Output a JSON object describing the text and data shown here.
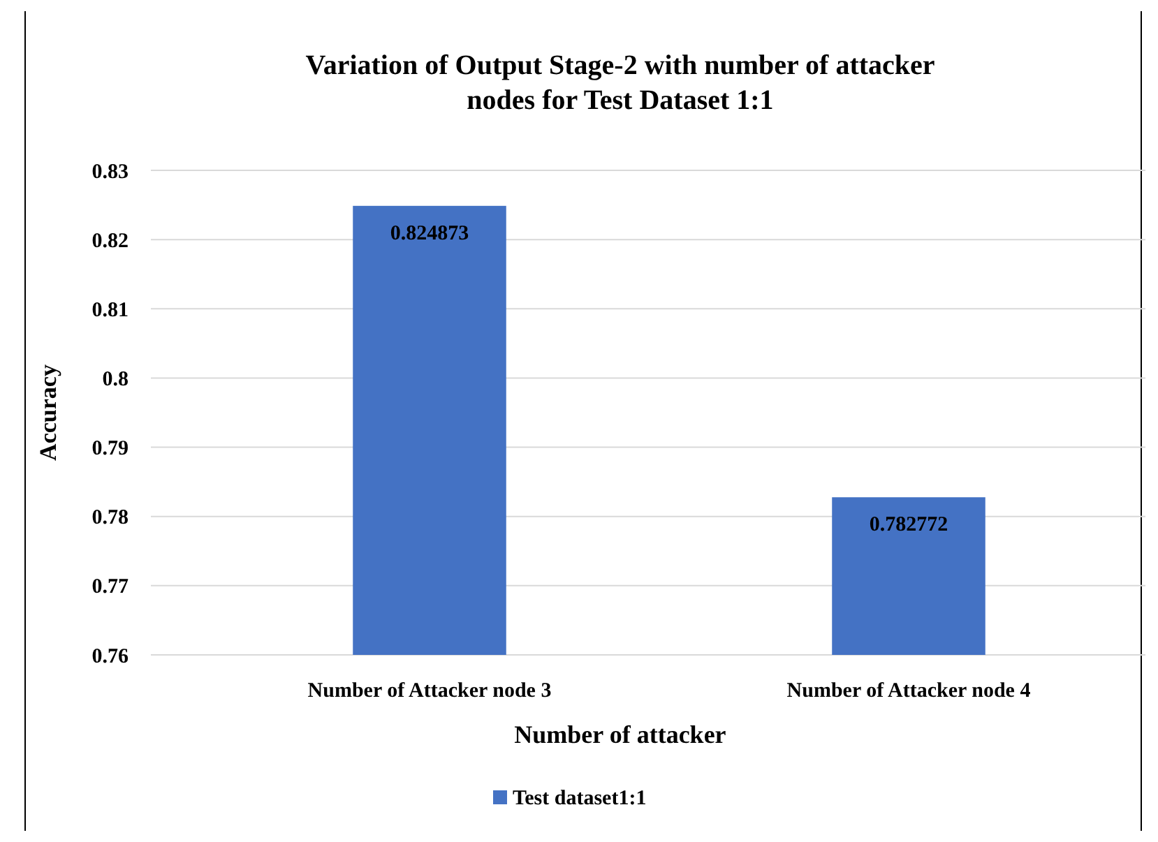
{
  "chart_data": {
    "type": "bar",
    "title": "Variation of Output Stage-2 with number of attacker nodes for Test Dataset 1:1",
    "xlabel": "Number of attacker",
    "ylabel": "Accuracy",
    "categories": [
      "Number of Attacker node 3",
      "Number of Attacker node 4"
    ],
    "series": [
      {
        "name": "Test dataset1:1",
        "color": "#4472c4",
        "values": [
          0.824873,
          0.782772
        ]
      }
    ],
    "ylim": [
      0.76,
      0.83
    ],
    "yticks": [
      0.76,
      0.77,
      0.78,
      0.79,
      0.8,
      0.81,
      0.82,
      0.83
    ],
    "grid": true,
    "legend": "bottom",
    "data_labels": true
  }
}
